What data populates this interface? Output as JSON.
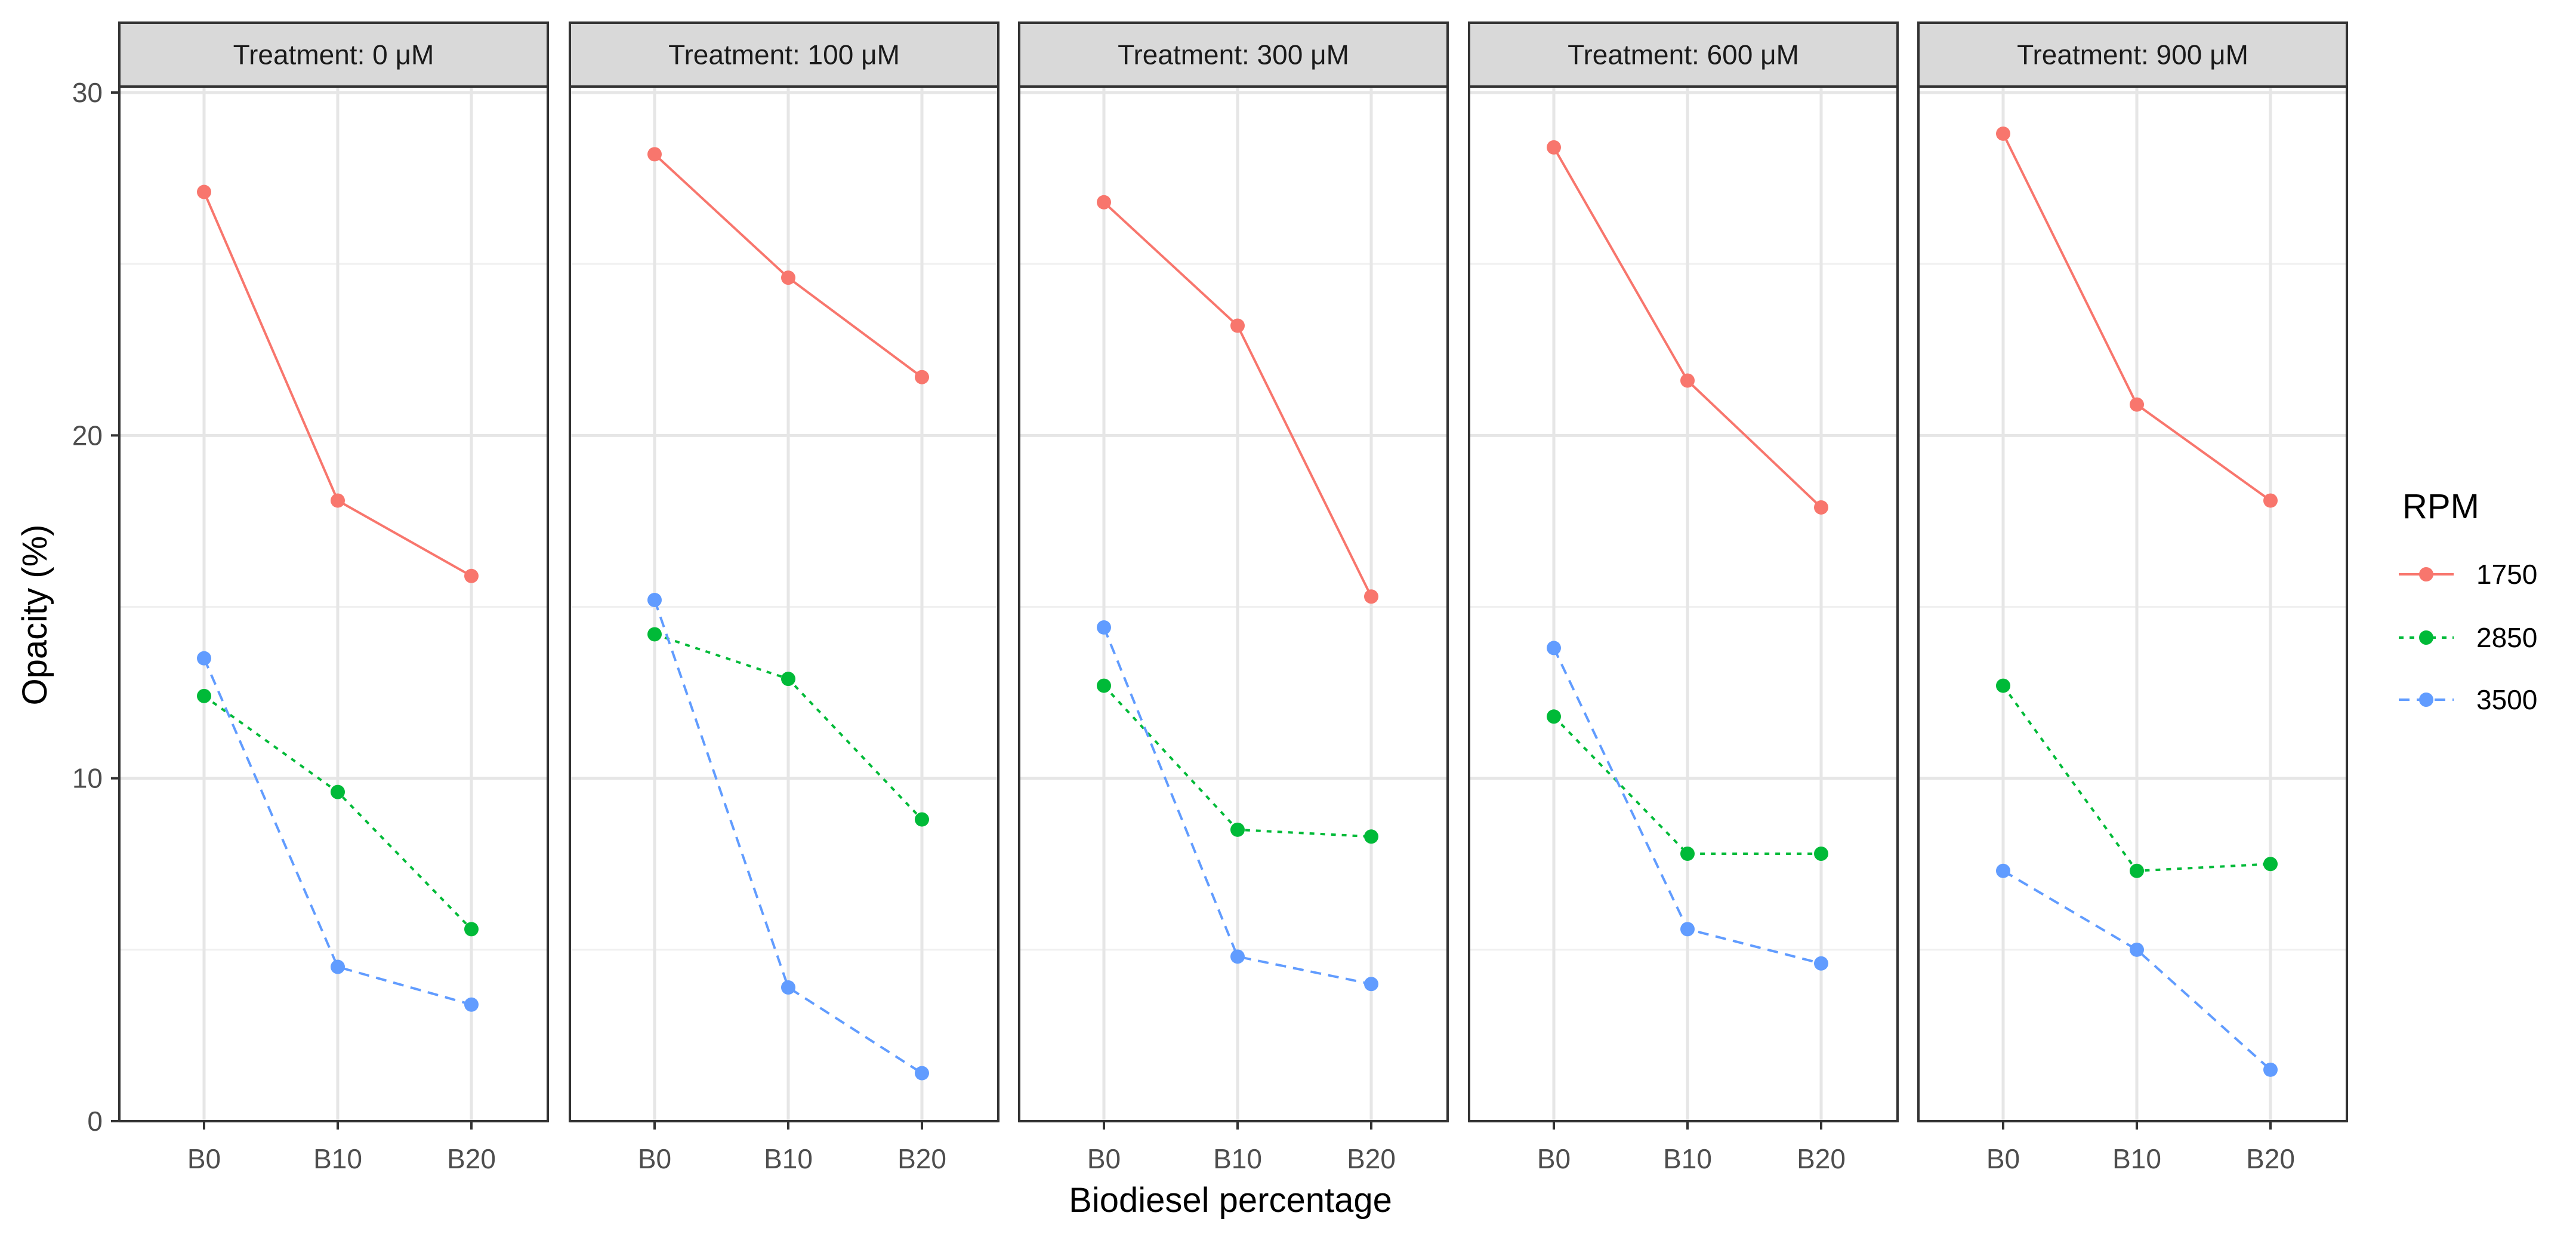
{
  "chart_data": {
    "type": "line",
    "xlabel": "Biodiesel percentage",
    "ylabel": "Opacity (%)",
    "ylim": [
      0,
      30
    ],
    "yticks": [
      0,
      10,
      20,
      30
    ],
    "categories": [
      "B0",
      "B10",
      "B20"
    ],
    "grid": true,
    "legend": {
      "title": "RPM",
      "placement": "right",
      "entries": [
        {
          "name": "1750",
          "color": "#F8766D",
          "linetype": "solid"
        },
        {
          "name": "2850",
          "color": "#00BA38",
          "linetype": "dotted"
        },
        {
          "name": "3500",
          "color": "#619CFF",
          "linetype": "dashed"
        }
      ]
    },
    "facets": [
      {
        "title": "Treatment: 0 μM",
        "series": [
          {
            "name": "1750",
            "values": [
              27.1,
              18.1,
              15.9
            ]
          },
          {
            "name": "2850",
            "values": [
              12.4,
              9.6,
              5.6
            ]
          },
          {
            "name": "3500",
            "values": [
              13.5,
              4.5,
              3.4
            ]
          }
        ]
      },
      {
        "title": "Treatment: 100 μM",
        "series": [
          {
            "name": "1750",
            "values": [
              28.2,
              24.6,
              21.7
            ]
          },
          {
            "name": "2850",
            "values": [
              14.2,
              12.9,
              8.8
            ]
          },
          {
            "name": "3500",
            "values": [
              15.2,
              3.9,
              1.4
            ]
          }
        ]
      },
      {
        "title": "Treatment: 300 μM",
        "series": [
          {
            "name": "1750",
            "values": [
              26.8,
              23.2,
              15.3
            ]
          },
          {
            "name": "2850",
            "values": [
              12.7,
              8.5,
              8.3
            ]
          },
          {
            "name": "3500",
            "values": [
              14.4,
              4.8,
              4.0
            ]
          }
        ]
      },
      {
        "title": "Treatment: 600 μM",
        "series": [
          {
            "name": "1750",
            "values": [
              28.4,
              21.6,
              17.9
            ]
          },
          {
            "name": "2850",
            "values": [
              11.8,
              7.8,
              7.8
            ]
          },
          {
            "name": "3500",
            "values": [
              13.8,
              5.6,
              4.6
            ]
          }
        ]
      },
      {
        "title": "Treatment: 900 μM",
        "series": [
          {
            "name": "1750",
            "values": [
              28.8,
              20.9,
              18.1
            ]
          },
          {
            "name": "2850",
            "values": [
              12.7,
              7.3,
              7.5
            ]
          },
          {
            "name": "3500",
            "values": [
              7.3,
              5.0,
              1.5
            ]
          }
        ]
      }
    ]
  }
}
